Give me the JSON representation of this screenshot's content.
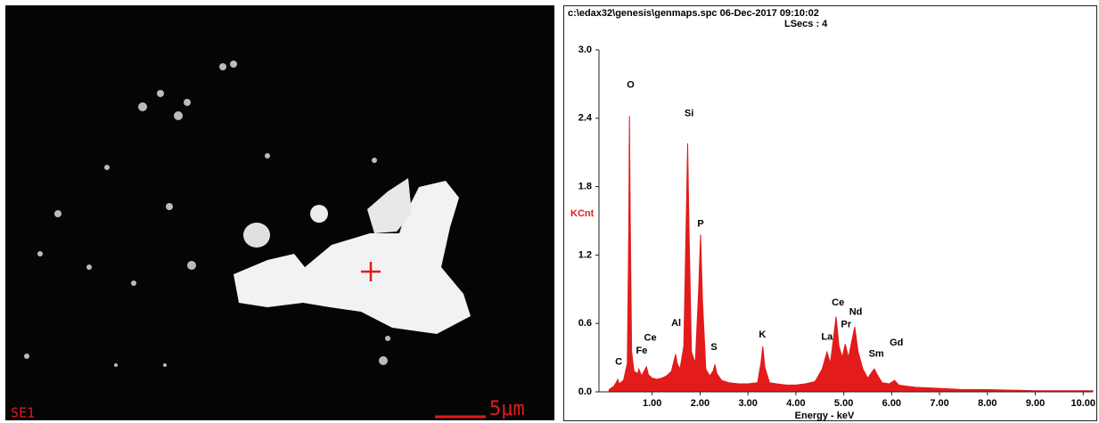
{
  "image_panel": {
    "detector": "SE1",
    "scale_bar": "5μm"
  },
  "chart_data": {
    "type": "area",
    "title": "c:\\edax32\\genesis\\genmaps.spc  06-Dec-2017 09:10:02",
    "subtitle": "LSecs : 4",
    "y_label": "KCnt",
    "x_label": "Energy - keV",
    "x": [
      0.1,
      0.2,
      0.26,
      0.28,
      0.31,
      0.4,
      0.48,
      0.51,
      0.525,
      0.54,
      0.57,
      0.62,
      0.7,
      0.72,
      0.78,
      0.84,
      0.88,
      0.92,
      1.0,
      1.1,
      1.2,
      1.3,
      1.4,
      1.46,
      1.49,
      1.52,
      1.58,
      1.66,
      1.71,
      1.74,
      1.77,
      1.82,
      1.9,
      1.97,
      2.01,
      2.05,
      2.12,
      2.2,
      2.27,
      2.31,
      2.35,
      2.45,
      2.6,
      2.8,
      3.0,
      3.2,
      3.27,
      3.31,
      3.35,
      3.45,
      3.6,
      3.8,
      4.0,
      4.2,
      4.4,
      4.55,
      4.65,
      4.72,
      4.78,
      4.84,
      4.9,
      4.97,
      5.03,
      5.1,
      5.17,
      5.23,
      5.3,
      5.4,
      5.5,
      5.6,
      5.64,
      5.7,
      5.8,
      5.95,
      6.06,
      6.15,
      6.3,
      6.5,
      7.0,
      7.5,
      8.0,
      8.5,
      9.0,
      9.5,
      10.0,
      10.2
    ],
    "series": [
      {
        "color": "#e31b1b",
        "values": [
          0.02,
          0.05,
          0.09,
          0.11,
          0.07,
          0.1,
          0.25,
          1.4,
          2.42,
          1.6,
          0.35,
          0.18,
          0.16,
          0.2,
          0.14,
          0.19,
          0.22,
          0.15,
          0.12,
          0.11,
          0.12,
          0.14,
          0.18,
          0.28,
          0.33,
          0.25,
          0.2,
          0.4,
          1.5,
          2.18,
          1.4,
          0.35,
          0.25,
          0.9,
          1.38,
          0.8,
          0.2,
          0.14,
          0.18,
          0.24,
          0.16,
          0.1,
          0.08,
          0.07,
          0.07,
          0.08,
          0.25,
          0.4,
          0.22,
          0.08,
          0.07,
          0.06,
          0.06,
          0.07,
          0.09,
          0.2,
          0.35,
          0.25,
          0.45,
          0.66,
          0.4,
          0.3,
          0.42,
          0.3,
          0.45,
          0.57,
          0.35,
          0.2,
          0.12,
          0.18,
          0.2,
          0.15,
          0.08,
          0.07,
          0.1,
          0.06,
          0.05,
          0.04,
          0.03,
          0.02,
          0.02,
          0.015,
          0.01,
          0.01,
          0.01,
          0.01
        ]
      }
    ],
    "xlim": [
      0,
      10.2
    ],
    "ylim": [
      0,
      3.0
    ],
    "xticks": [
      {
        "value": 1,
        "label": "1.00"
      },
      {
        "value": 2,
        "label": "2.00"
      },
      {
        "value": 3,
        "label": "3.00"
      },
      {
        "value": 4,
        "label": "4.00"
      },
      {
        "value": 5,
        "label": "5.00"
      },
      {
        "value": 6,
        "label": "6.00"
      },
      {
        "value": 7,
        "label": "7.00"
      },
      {
        "value": 8,
        "label": "8.00"
      },
      {
        "value": 9,
        "label": "9.00"
      },
      {
        "value": 10,
        "label": "10.00"
      }
    ],
    "yticks": [
      {
        "value": 0,
        "label": "0.0"
      },
      0.6,
      1.2,
      1.8,
      2.4,
      {
        "value": 3,
        "label": "3.0"
      }
    ],
    "annotations": [
      {
        "text": "C",
        "x": 0.3,
        "y": 0.26
      },
      {
        "text": "O",
        "x": 0.55,
        "y": 2.69
      },
      {
        "text": "Fe",
        "x": 0.78,
        "y": 0.36
      },
      {
        "text": "Ce",
        "x": 0.96,
        "y": 0.47
      },
      {
        "text": "Al",
        "x": 1.5,
        "y": 0.6
      },
      {
        "text": "Si",
        "x": 1.77,
        "y": 2.44
      },
      {
        "text": "P",
        "x": 2.01,
        "y": 1.47
      },
      {
        "text": "S",
        "x": 2.29,
        "y": 0.39
      },
      {
        "text": "K",
        "x": 3.3,
        "y": 0.5
      },
      {
        "text": "La",
        "x": 4.65,
        "y": 0.48
      },
      {
        "text": "Ce",
        "x": 4.88,
        "y": 0.78
      },
      {
        "text": "Pr",
        "x": 5.05,
        "y": 0.59
      },
      {
        "text": "Nd",
        "x": 5.25,
        "y": 0.7
      },
      {
        "text": "Sm",
        "x": 5.68,
        "y": 0.33
      },
      {
        "text": "Gd",
        "x": 6.1,
        "y": 0.43
      }
    ]
  }
}
